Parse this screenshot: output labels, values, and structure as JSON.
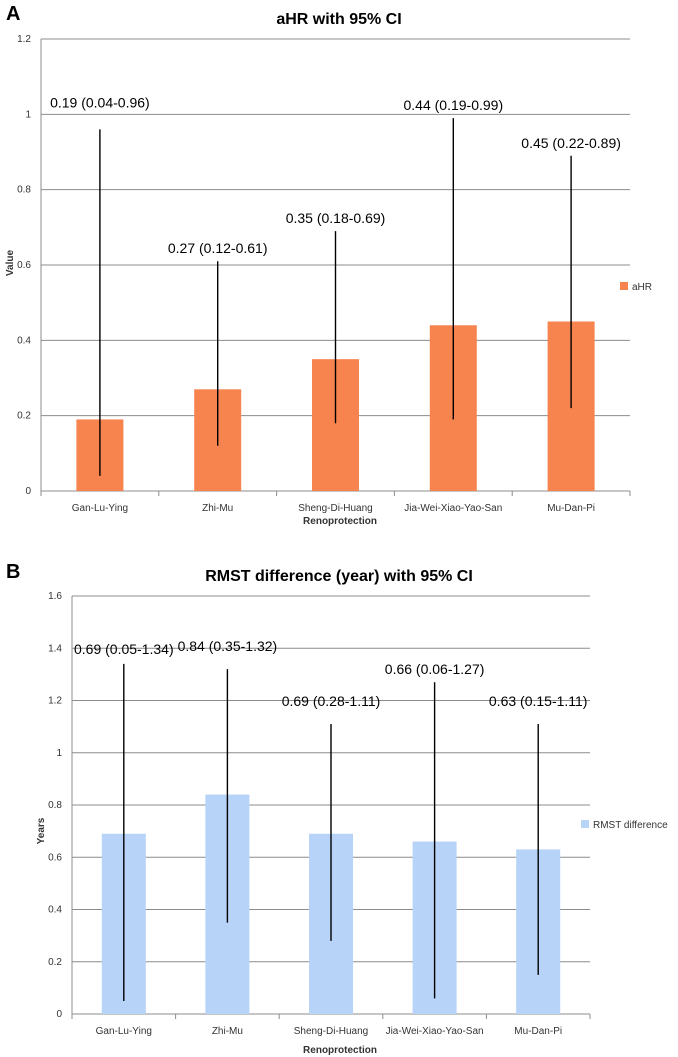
{
  "chart_data": [
    {
      "panel": "A",
      "type": "bar",
      "title": "aHR with 95% CI",
      "xlabel": "Renoprotection",
      "ylabel": "Value",
      "ylim": [
        0,
        1.2
      ],
      "yticks": [
        0,
        0.2,
        0.4,
        0.6,
        0.8,
        1,
        1.2
      ],
      "ytick_labels": [
        "0",
        "0.2",
        "0.4",
        "0.6",
        "0.8",
        "1",
        "1.2"
      ],
      "grid": true,
      "legend": "right",
      "categories": [
        "Gan-Lu-Ying",
        "Zhi-Mu",
        "Sheng-Di-Huang",
        "Jia-Wei-Xiao-Yao-San",
        "Mu-Dan-Pi"
      ],
      "series": [
        {
          "name": "aHR",
          "color": "#F7834E",
          "values": [
            0.19,
            0.27,
            0.35,
            0.44,
            0.45
          ],
          "ci_lower": [
            0.04,
            0.12,
            0.18,
            0.19,
            0.22
          ],
          "ci_upper": [
            0.96,
            0.61,
            0.69,
            0.99,
            0.89
          ],
          "data_labels": [
            "0.19 (0.04-0.96)",
            "0.27 (0.12-0.61)",
            "0.35 (0.18-0.69)",
            "0.44 (0.19-0.99)",
            "0.45 (0.22-0.89)"
          ]
        }
      ]
    },
    {
      "panel": "B",
      "type": "bar",
      "title": "RMST difference (year) with 95% CI",
      "xlabel": "Renoprotection",
      "ylabel": "Years",
      "ylim": [
        0,
        1.6
      ],
      "yticks": [
        0,
        0.2,
        0.4,
        0.6,
        0.8,
        1,
        1.2,
        1.4,
        1.6
      ],
      "ytick_labels": [
        "0",
        "0.2",
        "0.4",
        "0.6",
        "0.8",
        "1",
        "1.2",
        "1.4",
        "1.6"
      ],
      "grid": true,
      "legend": "right",
      "categories": [
        "Gan-Lu-Ying",
        "Zhi-Mu",
        "Sheng-Di-Huang",
        "Jia-Wei-Xiao-Yao-San",
        "Mu-Dan-Pi"
      ],
      "series": [
        {
          "name": "RMST difference",
          "color": "#B7D3F7",
          "values": [
            0.69,
            0.84,
            0.69,
            0.66,
            0.63
          ],
          "ci_lower": [
            0.05,
            0.35,
            0.28,
            0.06,
            0.15
          ],
          "ci_upper": [
            1.34,
            1.32,
            1.11,
            1.27,
            1.11
          ],
          "data_labels": [
            "0.69 (0.05-1.34)",
            "0.84 (0.35-1.32)",
            "0.69 (0.28-1.11)",
            "0.66 (0.06-1.27)",
            "0.63 (0.15-1.11)"
          ]
        }
      ]
    }
  ]
}
